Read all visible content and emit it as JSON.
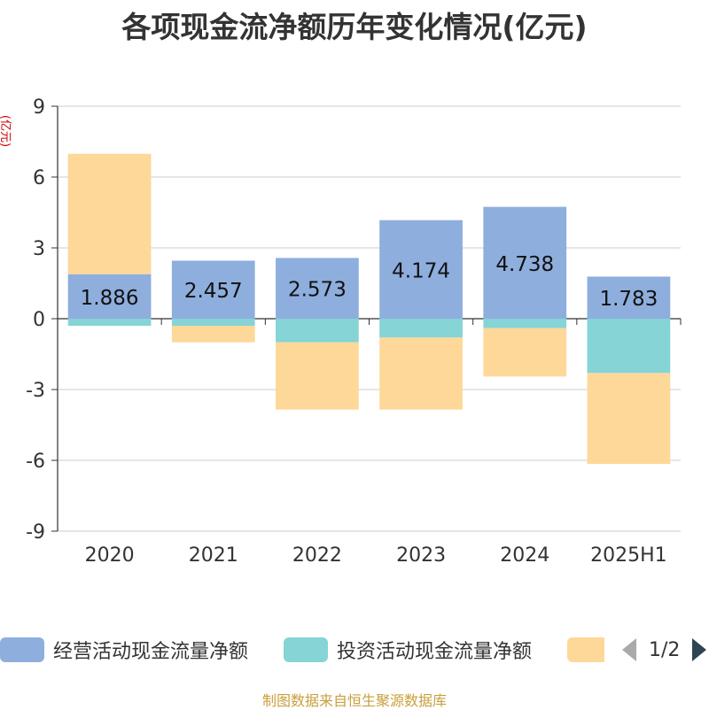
{
  "title": "各项现金流净额历年变化情况(亿元)",
  "source": "制图数据来自恒生聚源数据库",
  "legend": {
    "page_indicator": "1/2",
    "prev_icon": "triangle-left-icon",
    "next_icon": "triangle-right-icon"
  },
  "chart_data": {
    "type": "bar",
    "stacked": true,
    "title": "各项现金流净额历年变化情况(亿元)",
    "ylabel": "(亿元)",
    "xlabel": "",
    "categories": [
      "2020",
      "2021",
      "2022",
      "2023",
      "2024",
      "2025H1"
    ],
    "ylim": [
      -9,
      9
    ],
    "yticks": [
      9,
      6,
      3,
      0,
      -3,
      -6,
      -9
    ],
    "grid": true,
    "legend_position": "bottom",
    "series": [
      {
        "name": "经营活动现金流量净额",
        "color": "#8eaedd",
        "values": [
          1.886,
          2.457,
          2.573,
          4.174,
          4.738,
          1.783
        ],
        "labels": [
          "1.886",
          "2.457",
          "2.573",
          "4.174",
          "4.738",
          "1.783"
        ]
      },
      {
        "name": "投资活动现金流量净额",
        "color": "#86d4d6",
        "values": [
          -0.3,
          -0.3,
          -1.0,
          -0.8,
          -0.4,
          -2.3
        ]
      },
      {
        "name": "",
        "color": "#fdd899",
        "values": [
          5.1,
          -0.7,
          -2.85,
          -3.05,
          -2.05,
          -3.85
        ]
      }
    ]
  }
}
